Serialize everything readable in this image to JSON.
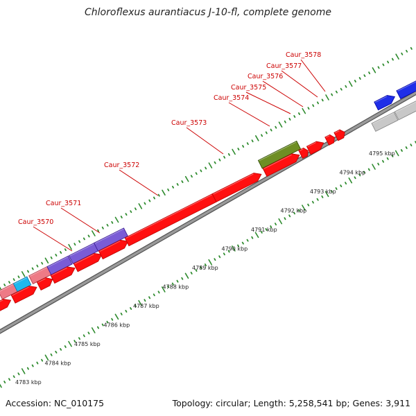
{
  "title": "Chloroflexus aurantiacus J-10-fl, complete genome",
  "footer": {
    "accession": "Accession: NC_010175",
    "topology": "Topology: circular; Length: 5,258,541 bp; Genes: 3,911"
  },
  "scale_labels": [
    "4783 kbp",
    "4784 kbp",
    "4785 kbp",
    "4786 kbp",
    "4787 kbp",
    "4788 kbp",
    "4789 kbp",
    "4790 kbp",
    "4791 kbp",
    "4792 kbp",
    "4793 kbp",
    "4794 kbp",
    "4795 kbp"
  ],
  "gene_labels": [
    "Caur_3570",
    "Caur_3571",
    "Caur_3572",
    "Caur_3573",
    "Caur_3574",
    "Caur_3575",
    "Caur_3576",
    "Caur_3577",
    "Caur_3578"
  ],
  "colors": {
    "forward_gene": "#ff1010",
    "reverse_gene": "#ff1010",
    "purple_gene": "#7a5cd6",
    "pink_gene": "#ee7a86",
    "cyan_gene": "#1fb8ee",
    "olive_gene": "#6e8e24",
    "blue_gene": "#1f2ee8",
    "grey_gene": "#c8c8c8",
    "backbone": "#8a8a8a",
    "tick": "#2e8b2e",
    "label_red": "#cc0000"
  }
}
